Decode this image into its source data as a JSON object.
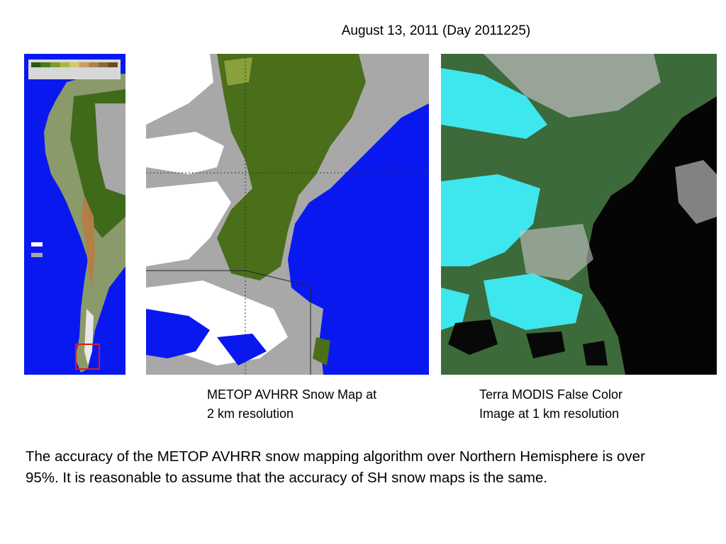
{
  "slide": {
    "title": "August 13, 2011 (Day 2011225)",
    "caption_snow_line1": "METOP AVHRR Snow Map at",
    "caption_snow_line2": "2 km resolution",
    "caption_modis_line1": "Terra MODIS False Color",
    "caption_modis_line2": "Image at 1 km resolution",
    "body": "The accuracy of the METOP AVHRR snow mapping algorithm over Northern Hemisphere is over 95%.  It is reasonable to assume that the accuracy of SH snow maps is the same."
  },
  "colors": {
    "ocean": "#0a18f0",
    "snow": "#ffffff",
    "land_gray": "#a8a8a8",
    "vegetation": "#4a6e1a",
    "vegetation_light": "#8aa03a",
    "modis_snow": "#3ee6ee",
    "modis_ocean": "#050505",
    "highlight_box": "#e01818"
  },
  "legend_colors": [
    "#2c5a14",
    "#4a7a1e",
    "#7a9a2e",
    "#a8b842",
    "#d4c870",
    "#c8a060",
    "#b08048",
    "#8a6a3a",
    "#6a4a28"
  ]
}
